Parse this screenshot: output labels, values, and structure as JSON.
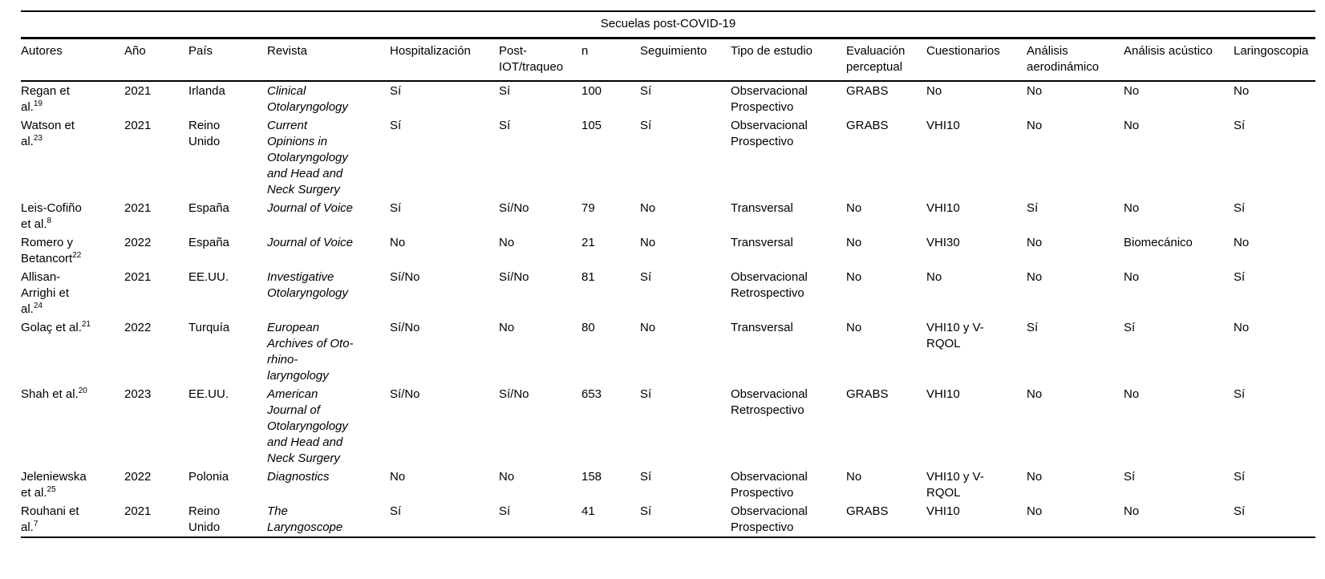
{
  "table": {
    "title": "Secuelas post-COVID-19",
    "columns": [
      {
        "key": "autores",
        "label": "Autores"
      },
      {
        "key": "ano",
        "label": "Año"
      },
      {
        "key": "pais",
        "label": "País"
      },
      {
        "key": "revista",
        "label": "Revista"
      },
      {
        "key": "hospitalizacion",
        "label": "Hospitalización"
      },
      {
        "key": "post_iot",
        "label": "Post-\nIOT/traqueo"
      },
      {
        "key": "n",
        "label": "n"
      },
      {
        "key": "seguimiento",
        "label": "Seguimiento"
      },
      {
        "key": "tipo_de_estudio",
        "label": "Tipo de estudio"
      },
      {
        "key": "evaluacion_perceptual",
        "label": "Evaluación perceptual"
      },
      {
        "key": "cuestionarios",
        "label": "Cuestionarios"
      },
      {
        "key": "analisis_aerodinamico",
        "label": "Análisis aerodinámico"
      },
      {
        "key": "analisis_acustico",
        "label": "Análisis acústico"
      },
      {
        "key": "laringoscopia",
        "label": "Laringoscopia"
      }
    ],
    "rows": [
      {
        "autores": {
          "text": "Regan et al.",
          "ref": "19"
        },
        "ano": "2021",
        "pais": "Irlanda",
        "revista": "Clinical Otolaryngology",
        "hospitalizacion": "Sí",
        "post_iot": "Sí",
        "n": "100",
        "seguimiento": "Sí",
        "tipo_de_estudio": "Observacional Prospectivo",
        "evaluacion_perceptual": "GRABS",
        "cuestionarios": "No",
        "analisis_aerodinamico": "No",
        "analisis_acustico": "No",
        "laringoscopia": "No"
      },
      {
        "autores": {
          "text": "Watson et al.",
          "ref": "23"
        },
        "ano": "2021",
        "pais": "Reino Unido",
        "revista": "Current Opinions in Otolaryngology and Head and Neck Surgery",
        "hospitalizacion": "Sí",
        "post_iot": "Sí",
        "n": "105",
        "seguimiento": "Sí",
        "tipo_de_estudio": "Observacional Prospectivo",
        "evaluacion_perceptual": "GRABS",
        "cuestionarios": "VHI10",
        "analisis_aerodinamico": "No",
        "analisis_acustico": "No",
        "laringoscopia": "Sí"
      },
      {
        "autores": {
          "text": "Leis-Cofiño et al.",
          "ref": "8"
        },
        "ano": "2021",
        "pais": "España",
        "revista": "Journal of Voice",
        "hospitalizacion": "Sí",
        "post_iot": "Sí/No",
        "n": "79",
        "seguimiento": "No",
        "tipo_de_estudio": "Transversal",
        "evaluacion_perceptual": "No",
        "cuestionarios": "VHI10",
        "analisis_aerodinamico": "Sí",
        "analisis_acustico": "No",
        "laringoscopia": "Sí"
      },
      {
        "autores": {
          "text": "Romero y Betancort",
          "ref": "22"
        },
        "ano": "2022",
        "pais": "España",
        "revista": "Journal of Voice",
        "hospitalizacion": "No",
        "post_iot": "No",
        "n": "21",
        "seguimiento": "No",
        "tipo_de_estudio": "Transversal",
        "evaluacion_perceptual": "No",
        "cuestionarios": "VHI30",
        "analisis_aerodinamico": "No",
        "analisis_acustico": "Biomecánico",
        "laringoscopia": "No"
      },
      {
        "autores": {
          "text": "Allisan-Arrighi et al.",
          "ref": "24"
        },
        "ano": "2021",
        "pais": "EE.UU.",
        "revista": "Investigative Otolaryngology",
        "hospitalizacion": "Sí/No",
        "post_iot": "Sí/No",
        "n": "81",
        "seguimiento": "Sí",
        "tipo_de_estudio": "Observacional Retrospectivo",
        "evaluacion_perceptual": "No",
        "cuestionarios": "No",
        "analisis_aerodinamico": "No",
        "analisis_acustico": "No",
        "laringoscopia": "Sí"
      },
      {
        "autores": {
          "text": "Golaç et al.",
          "ref": "21"
        },
        "ano": "2022",
        "pais": "Turquía",
        "revista": "European Archives of Oto-rhino-laryngology",
        "hospitalizacion": "Sí/No",
        "post_iot": "No",
        "n": "80",
        "seguimiento": "No",
        "tipo_de_estudio": "Transversal",
        "evaluacion_perceptual": "No",
        "cuestionarios": "VHI10 y V-RQOL",
        "analisis_aerodinamico": "Sí",
        "analisis_acustico": "Sí",
        "laringoscopia": "No"
      },
      {
        "autores": {
          "text": "Shah et al.",
          "ref": "20"
        },
        "ano": "2023",
        "pais": "EE.UU.",
        "revista": "American Journal of Otolaryngology and Head and Neck Surgery",
        "hospitalizacion": "Sí/No",
        "post_iot": "Sí/No",
        "n": "653",
        "seguimiento": "Sí",
        "tipo_de_estudio": "Observacional Retrospectivo",
        "evaluacion_perceptual": "GRABS",
        "cuestionarios": "VHI10",
        "analisis_aerodinamico": "No",
        "analisis_acustico": "No",
        "laringoscopia": "Sí"
      },
      {
        "autores": {
          "text": "Jeleniewska et al.",
          "ref": "25"
        },
        "ano": "2022",
        "pais": "Polonia",
        "revista": "Diagnostics",
        "hospitalizacion": "No",
        "post_iot": "No",
        "n": "158",
        "seguimiento": "Sí",
        "tipo_de_estudio": "Observacional Prospectivo",
        "evaluacion_perceptual": "No",
        "cuestionarios": "VHI10 y V-RQOL",
        "analisis_aerodinamico": "No",
        "analisis_acustico": "Sí",
        "laringoscopia": "Sí"
      },
      {
        "autores": {
          "text": "Rouhani et al.",
          "ref": "7"
        },
        "ano": "2021",
        "pais": "Reino Unido",
        "revista": "The Laryngoscope",
        "hospitalizacion": "Sí",
        "post_iot": "Sí",
        "n": "41",
        "seguimiento": "Sí",
        "tipo_de_estudio": "Observacional Prospectivo",
        "evaluacion_perceptual": "GRABS",
        "cuestionarios": "VHI10",
        "analisis_aerodinamico": "No",
        "analisis_acustico": "No",
        "laringoscopia": "Sí"
      }
    ]
  }
}
